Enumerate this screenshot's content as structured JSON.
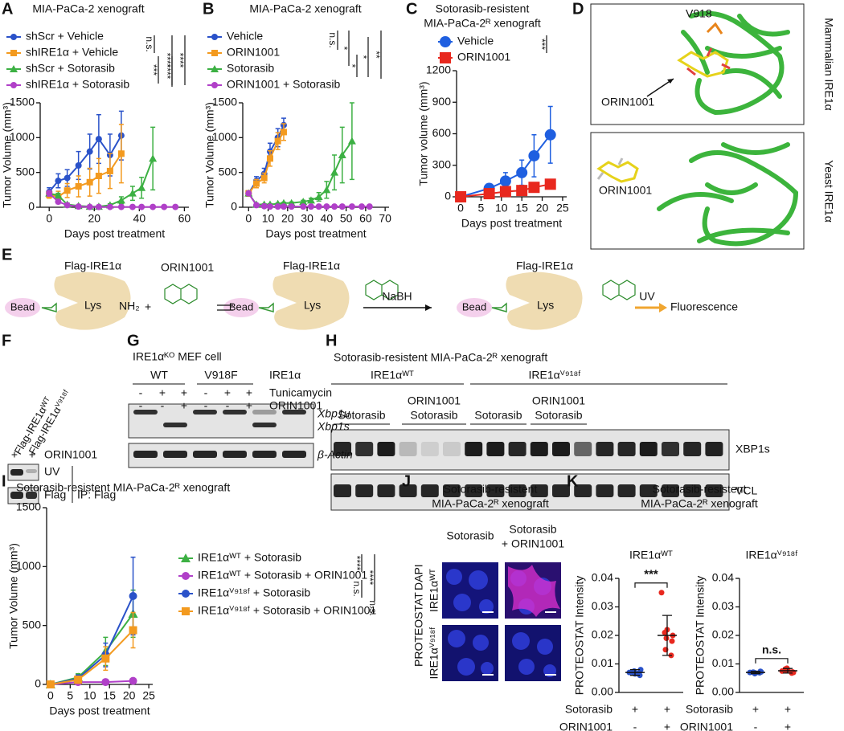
{
  "panel_labels": [
    "A",
    "B",
    "C",
    "D",
    "E",
    "F",
    "G",
    "H",
    "I",
    "J",
    "K"
  ],
  "chart_data": [
    {
      "type": "line",
      "title": "MIA-PaCa-2 xenograft",
      "xlabel": "Days post treatment",
      "ylabel": "Tumor Volume (mm³)",
      "xlim": [
        -4,
        62
      ],
      "xticks": [
        0,
        20,
        40,
        60
      ],
      "ylim": [
        0,
        1500
      ],
      "yticks": [
        0,
        500,
        1000,
        1500
      ],
      "annotations": [
        "n.s.",
        "****",
        "***",
        "****",
        "****"
      ],
      "series": [
        {
          "name": "shScr + Vehicle",
          "color": "#2a52c9",
          "marker": "circle",
          "x": [
            0,
            4,
            8,
            13,
            18,
            22,
            27,
            32
          ],
          "values": [
            220,
            380,
            420,
            600,
            800,
            980,
            750,
            1030
          ],
          "errors": [
            60,
            100,
            120,
            200,
            250,
            350,
            300,
            350
          ]
        },
        {
          "name": "shIRE1α + Vehicle",
          "color": "#f39a1f",
          "marker": "square",
          "x": [
            0,
            4,
            8,
            13,
            18,
            22,
            27,
            32
          ],
          "values": [
            180,
            150,
            240,
            300,
            360,
            450,
            520,
            770
          ],
          "errors": [
            50,
            80,
            100,
            150,
            200,
            250,
            250,
            420
          ]
        },
        {
          "name": "shScr + Sotorasib",
          "color": "#3cb043",
          "marker": "triangle",
          "x": [
            0,
            4,
            8,
            13,
            18,
            22,
            27,
            32,
            37,
            41,
            46
          ],
          "values": [
            200,
            170,
            40,
            20,
            10,
            10,
            30,
            100,
            200,
            280,
            700
          ],
          "errors": [
            30,
            30,
            20,
            10,
            5,
            5,
            20,
            50,
            100,
            150,
            450
          ]
        },
        {
          "name": "shIRE1α + Sotorasib",
          "color": "#b040c8",
          "marker": "circle",
          "x": [
            0,
            4,
            8,
            13,
            18,
            22,
            27,
            32,
            37,
            41,
            46,
            51,
            56
          ],
          "values": [
            200,
            80,
            30,
            10,
            5,
            5,
            5,
            5,
            5,
            5,
            5,
            5,
            5
          ],
          "errors": [
            40,
            30,
            10,
            5,
            2,
            2,
            2,
            2,
            2,
            2,
            2,
            2,
            2
          ]
        }
      ]
    },
    {
      "type": "line",
      "title": "MIA-PaCa-2 xenograft",
      "xlabel": "Days post treatment",
      "ylabel": "Tumor Volume (mm³)",
      "xlim": [
        -3,
        72
      ],
      "xticks": [
        0,
        10,
        20,
        30,
        40,
        50,
        60,
        70
      ],
      "ylim": [
        0,
        1500
      ],
      "yticks": [
        0,
        500,
        1000,
        1500
      ],
      "annotations": [
        "n.s.",
        "*",
        "*",
        "*",
        "**"
      ],
      "series": [
        {
          "name": "Vehicle",
          "color": "#2a52c9",
          "marker": "circle",
          "x": [
            0,
            4,
            8,
            11,
            15,
            18
          ],
          "values": [
            200,
            380,
            480,
            800,
            1000,
            1180
          ],
          "errors": [
            40,
            60,
            80,
            120,
            130,
            100
          ]
        },
        {
          "name": "ORIN1001",
          "color": "#f39a1f",
          "marker": "square",
          "x": [
            0,
            4,
            8,
            11,
            15,
            18
          ],
          "values": [
            200,
            340,
            420,
            700,
            950,
            1080
          ],
          "errors": [
            40,
            60,
            70,
            110,
            120,
            120
          ]
        },
        {
          "name": "Sotorasib",
          "color": "#3cb043",
          "marker": "triangle",
          "x": [
            0,
            4,
            8,
            11,
            15,
            18,
            22,
            28,
            32,
            36,
            40,
            44,
            48,
            53
          ],
          "values": [
            200,
            40,
            40,
            40,
            50,
            60,
            60,
            80,
            100,
            150,
            250,
            500,
            750,
            950
          ],
          "errors": [
            30,
            10,
            10,
            10,
            10,
            10,
            15,
            20,
            30,
            60,
            120,
            250,
            400,
            550
          ]
        },
        {
          "name": "ORIN1001 + Sotorasib",
          "color": "#b040c8",
          "marker": "circle",
          "x": [
            0,
            4,
            8,
            11,
            15,
            18,
            22,
            28,
            32,
            36,
            40,
            44,
            48,
            53,
            58,
            62
          ],
          "values": [
            200,
            30,
            15,
            10,
            10,
            10,
            10,
            10,
            10,
            10,
            10,
            10,
            10,
            10,
            10,
            10
          ],
          "errors": [
            30,
            10,
            5,
            3,
            3,
            3,
            3,
            3,
            3,
            3,
            3,
            3,
            3,
            3,
            3,
            3
          ]
        }
      ]
    },
    {
      "type": "line",
      "title": "Sotorasib-resistent",
      "subtitle": "MIA-PaCa-2ᴿ xenograft",
      "xlabel": "Days post treatment",
      "ylabel": "Tumor volume (mm³)",
      "xlim": [
        -1,
        26
      ],
      "xticks": [
        0,
        5,
        10,
        15,
        20,
        25
      ],
      "ylim": [
        0,
        1200
      ],
      "yticks": [
        0,
        300,
        600,
        900,
        1200
      ],
      "annotations": [
        "***"
      ],
      "series": [
        {
          "name": "Vehicle",
          "color": "#1f5fe0",
          "marker": "circle",
          "x": [
            0,
            7,
            11,
            15,
            18,
            22
          ],
          "values": [
            0,
            80,
            150,
            230,
            390,
            590
          ],
          "errors": [
            0,
            40,
            80,
            120,
            200,
            270
          ]
        },
        {
          "name": "ORIN1001",
          "color": "#e8281e",
          "marker": "square",
          "x": [
            0,
            7,
            11,
            15,
            18,
            22
          ],
          "values": [
            0,
            30,
            50,
            60,
            90,
            120
          ],
          "errors": [
            0,
            10,
            20,
            20,
            25,
            30
          ]
        }
      ]
    },
    {
      "type": "line",
      "title": "Sotorasib-resistent MIA-PaCa-2ᴿ xenograft",
      "xlabel": "Days post treatment",
      "ylabel": "Tumor Volume (mm³)",
      "xlim": [
        -1,
        26
      ],
      "xticks": [
        0,
        5,
        10,
        15,
        20,
        25
      ],
      "ylim": [
        0,
        1500
      ],
      "yticks": [
        0,
        500,
        1000,
        1500
      ],
      "annotations": [
        "****",
        "n.s.",
        "****",
        "n.s."
      ],
      "series": [
        {
          "name": "IRE1αᵂᵀ + Sotorasib",
          "color": "#3cb043",
          "marker": "triangle",
          "x": [
            0,
            7,
            14,
            21
          ],
          "values": [
            0,
            60,
            280,
            600
          ],
          "errors": [
            0,
            30,
            120,
            200
          ]
        },
        {
          "name": "IRE1αᵂᵀ + Sotorasib + ORIN1001",
          "color": "#b040c8",
          "marker": "circle",
          "x": [
            0,
            7,
            14,
            21
          ],
          "values": [
            0,
            20,
            20,
            30
          ],
          "errors": [
            0,
            10,
            10,
            10
          ]
        },
        {
          "name": "IRE1αⱽ⁹¹⁸ᶠ + Sotorasib",
          "color": "#2a52c9",
          "marker": "circle",
          "x": [
            0,
            7,
            14,
            21
          ],
          "values": [
            0,
            50,
            250,
            750
          ],
          "errors": [
            0,
            30,
            100,
            330
          ]
        },
        {
          "name": "IRE1αⱽ⁹¹⁸ᶠ + Sotorasib + ORIN1001",
          "color": "#f39a1f",
          "marker": "square",
          "x": [
            0,
            7,
            14,
            21
          ],
          "values": [
            0,
            40,
            220,
            460
          ],
          "errors": [
            0,
            30,
            100,
            150
          ]
        }
      ]
    },
    {
      "type": "dot",
      "title": "IRE1αᵂᵀ",
      "ylabel": "PROTEOSTAT Intensity",
      "ylim": [
        0,
        0.04
      ],
      "yticks": [
        {
          "value": 0,
          "label": "0.00"
        },
        0.01,
        0.02,
        0.03,
        0.04
      ],
      "annotations": [
        "***"
      ],
      "conditions": [
        {
          "name": "Sotorasib",
          "signs": [
            "+",
            "+"
          ]
        },
        {
          "name": "ORIN1001",
          "signs": [
            "-",
            "+"
          ]
        }
      ],
      "groups": [
        {
          "color": "#2a52c9",
          "values": [
            0.007,
            0.0065,
            0.008,
            0.0075,
            0.006,
            0.007,
            0.0068,
            0.0072
          ],
          "mean": 0.007,
          "sd": 0.001
        },
        {
          "color": "#e8281e",
          "values": [
            0.035,
            0.022,
            0.02,
            0.019,
            0.018,
            0.015,
            0.013,
            0.021
          ],
          "mean": 0.02,
          "sd": 0.007
        }
      ]
    },
    {
      "type": "dot",
      "title": "IRE1αⱽ⁹¹⁸ᶠ",
      "ylabel": "PROTEOSTAT Intensity",
      "ylim": [
        0,
        0.04
      ],
      "yticks": [
        {
          "value": 0,
          "label": "0.00"
        },
        0.01,
        0.02,
        0.03,
        0.04
      ],
      "annotations": [
        "n.s."
      ],
      "conditions": [
        {
          "name": "Sotorasib",
          "signs": [
            "+",
            "+"
          ]
        },
        {
          "name": "ORIN1001",
          "signs": [
            "-",
            "+"
          ]
        }
      ],
      "groups": [
        {
          "color": "#2a52c9",
          "values": [
            0.007,
            0.0068,
            0.0072,
            0.0066,
            0.0074,
            0.007,
            0.0069,
            0.0071
          ],
          "mean": 0.007,
          "sd": 0.0004
        },
        {
          "color": "#e8281e",
          "values": [
            0.0075,
            0.008,
            0.007,
            0.0085,
            0.0072,
            0.0078,
            0.0068,
            0.0082
          ],
          "mean": 0.0076,
          "sd": 0.0008
        }
      ]
    }
  ],
  "panel_d": {
    "top_residue": "V918",
    "top_compound": "ORIN1001",
    "top_label": "Mammalian IRE1α",
    "bottom_compound": "ORIN1001",
    "bottom_label": "Yeast IRE1α"
  },
  "panel_e": {
    "proteins": [
      "Flag-IRE1α",
      "Flag-IRE1α",
      "Flag-IRE1α"
    ],
    "beads": [
      "Bead",
      "Bead",
      "Bead"
    ],
    "lys": [
      "Lys",
      "Lys",
      "Lys"
    ],
    "amine": "NH₂",
    "plus": "+",
    "compound": "ORIN1001",
    "reagent": "NaBH",
    "uv": "UV",
    "readout": "Fluorescence"
  },
  "panel_f": {
    "lanes": [
      "Flag-IRE1αᵂᵀ",
      "Flag-IRE1αⱽ⁹¹⁸ᶠ"
    ],
    "signs": [
      "+",
      "+"
    ],
    "treatment": "ORIN1001",
    "rows": [
      "UV",
      "Flag"
    ],
    "ip": "IP: Flag"
  },
  "panel_g": {
    "title": "IRE1αᴷᴼ MEF cell",
    "groups": [
      "WT",
      "V918F"
    ],
    "group_row": "IRE1α",
    "rows": [
      {
        "name": "Tunicamycin",
        "signs": [
          "-",
          "+",
          "+",
          "-",
          "+",
          "+"
        ]
      },
      {
        "name": "ORIN1001",
        "signs": [
          "-",
          "-",
          "+",
          "-",
          "-",
          "+"
        ]
      }
    ],
    "bands": [
      "Xbp1u",
      "Xbp1s",
      "β-Actin"
    ]
  },
  "panel_h": {
    "title": "Sotorasib-resistent MIA-PaCa-2ᴿ xenograft",
    "genotypes": [
      "IRE1αᵂᵀ",
      "IRE1αⱽ⁹¹⁸ᶠ"
    ],
    "groups": [
      "Sotorasib",
      "Sotorasib",
      "Sotorasib",
      "Sotorasib"
    ],
    "orin": [
      "ORIN1001",
      "ORIN1001"
    ],
    "bands": [
      "XBP1s",
      "VCL"
    ]
  },
  "panel_j": {
    "title": [
      "Sotorasib-resistent",
      "MIA-PaCa-2ᴿ xenograft"
    ],
    "columns": [
      "Sotorasib",
      "Sotorasib",
      "+ ORIN1001"
    ],
    "stains": [
      "PROTEOSTAT",
      "DAPI"
    ],
    "rows": [
      "IRE1αᵂᵀ",
      "IRE1αⱽ⁹¹⁸ᶠ"
    ]
  },
  "panel_k": {
    "title": [
      "Sotorasib-resistent",
      "MIA-PaCa-2ᴿ xenograft"
    ]
  }
}
